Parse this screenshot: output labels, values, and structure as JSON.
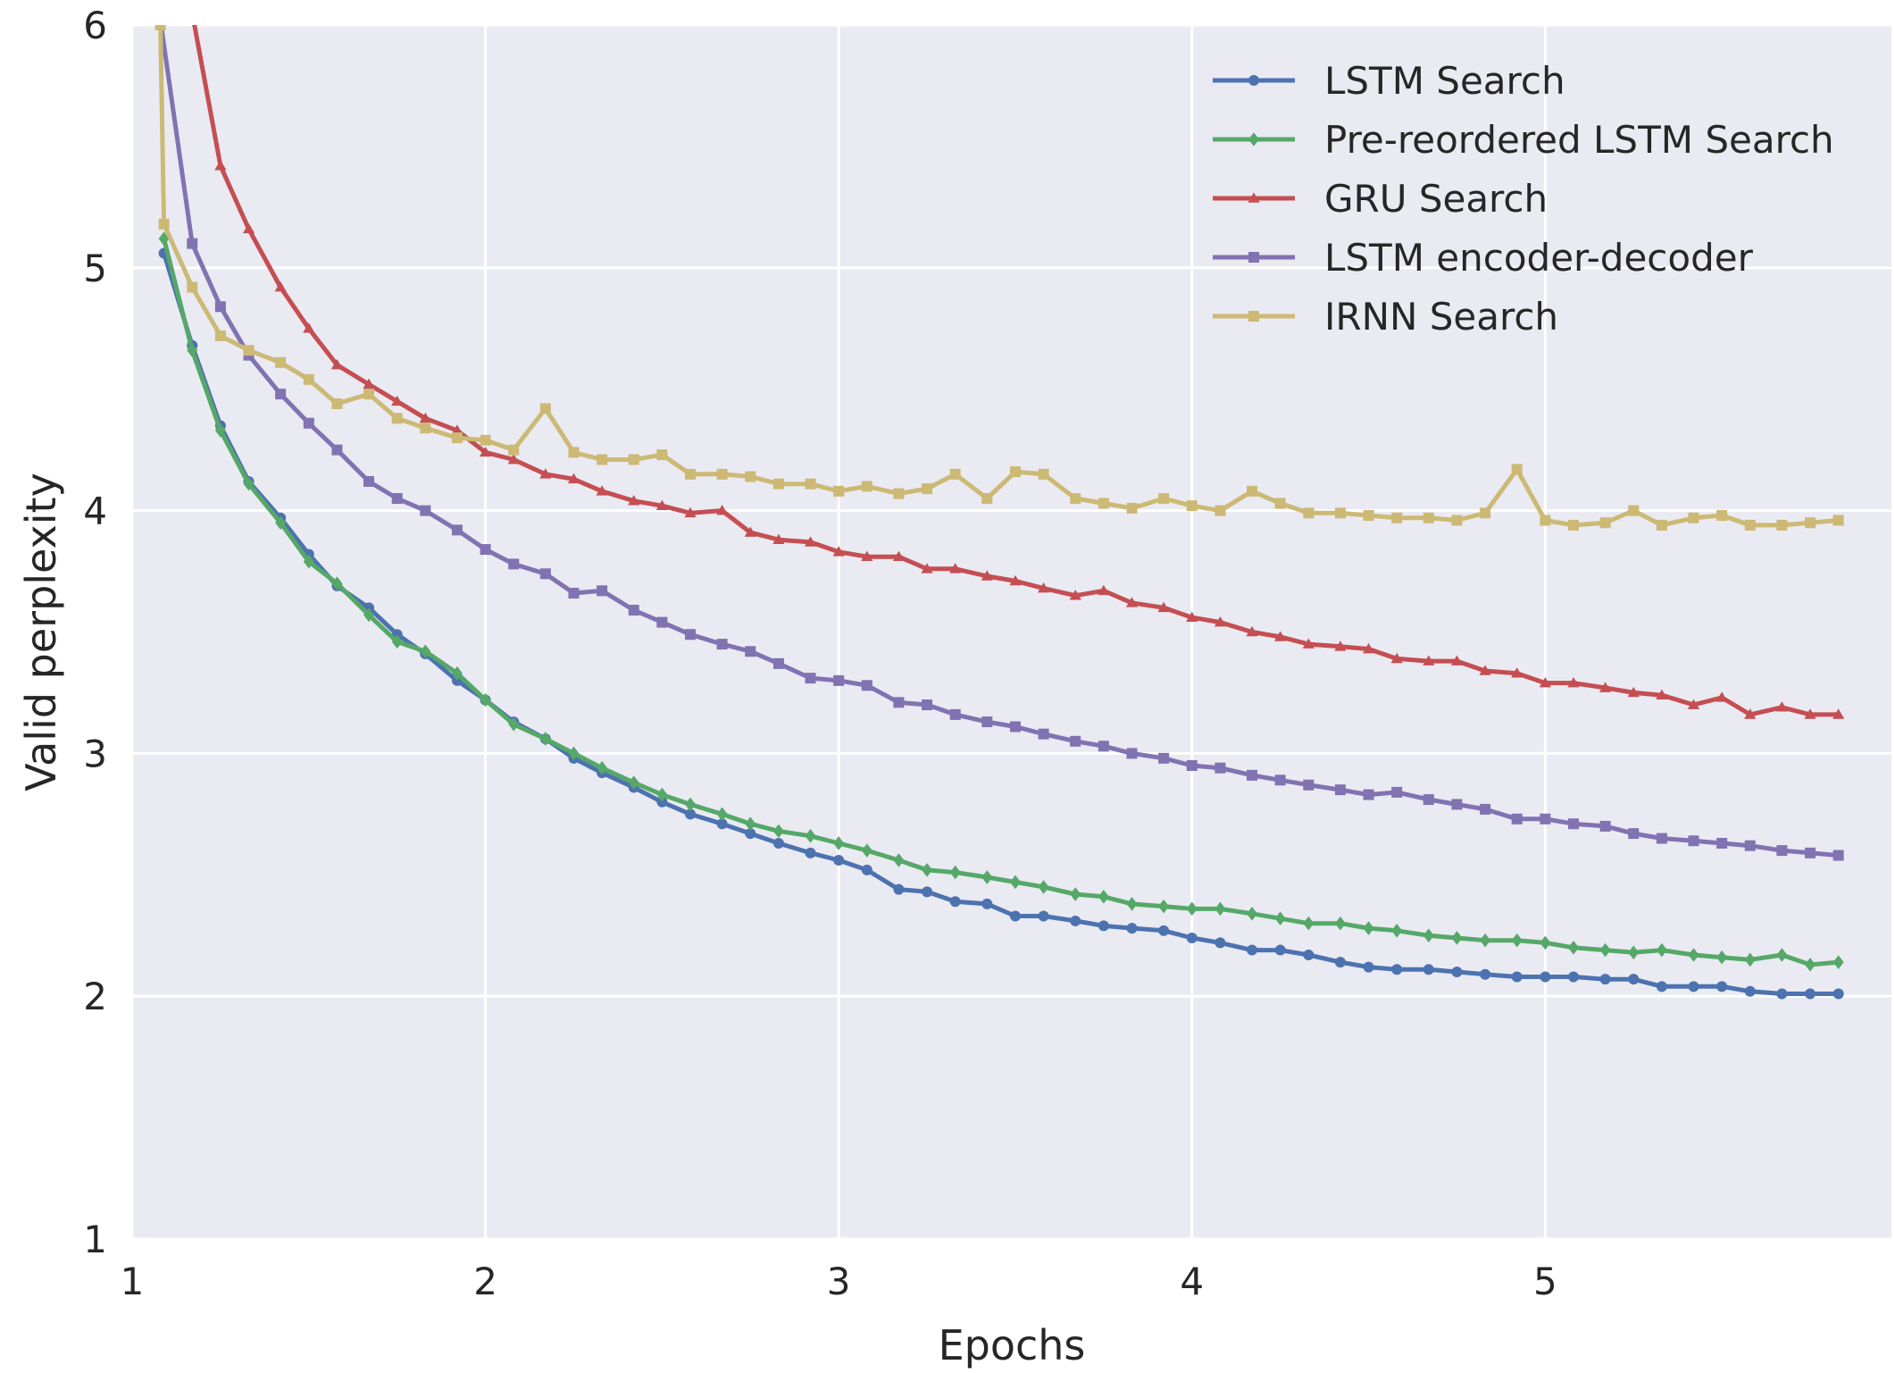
{
  "chart_data": {
    "type": "line",
    "title": "",
    "xlabel": "Epochs",
    "ylabel": "Valid perplexity",
    "xlim": [
      1,
      5.98
    ],
    "ylim": [
      1,
      6
    ],
    "xticks": [
      1,
      2,
      3,
      4,
      5
    ],
    "yticks": [
      1,
      2,
      3,
      4,
      5,
      6
    ],
    "grid": true,
    "background": "#eaeaf2",
    "grid_color": "#ffffff",
    "legend_position": "top-right",
    "series": [
      {
        "name": "LSTM Search",
        "color": "#4c72b0",
        "marker": "circle",
        "x": [
          1.09,
          1.17,
          1.25,
          1.33,
          1.42,
          1.5,
          1.58,
          1.67,
          1.75,
          1.83,
          1.92,
          2.0,
          2.08,
          2.17,
          2.25,
          2.33,
          2.42,
          2.5,
          2.58,
          2.67,
          2.75,
          2.83,
          2.92,
          3.0,
          3.08,
          3.17,
          3.25,
          3.33,
          3.42,
          3.5,
          3.58,
          3.67,
          3.75,
          3.83,
          3.92,
          4.0,
          4.08,
          4.17,
          4.25,
          4.33,
          4.42,
          4.5,
          4.58,
          4.67,
          4.75,
          4.83,
          4.92,
          5.0,
          5.08,
          5.17,
          5.25,
          5.33,
          5.42,
          5.5,
          5.58,
          5.67,
          5.75,
          5.83
        ],
        "y": [
          5.06,
          4.68,
          4.35,
          4.12,
          3.97,
          3.82,
          3.69,
          3.6,
          3.49,
          3.41,
          3.3,
          3.22,
          3.13,
          3.06,
          2.98,
          2.92,
          2.86,
          2.8,
          2.75,
          2.71,
          2.67,
          2.63,
          2.59,
          2.56,
          2.52,
          2.44,
          2.43,
          2.39,
          2.38,
          2.33,
          2.33,
          2.31,
          2.29,
          2.28,
          2.27,
          2.24,
          2.22,
          2.19,
          2.19,
          2.17,
          2.14,
          2.12,
          2.11,
          2.11,
          2.1,
          2.09,
          2.08,
          2.08,
          2.08,
          2.07,
          2.07,
          2.04,
          2.04,
          2.04,
          2.02,
          2.01,
          2.01,
          2.01
        ]
      },
      {
        "name": "Pre-reordered LSTM Search",
        "color": "#55a868",
        "marker": "diamond",
        "x": [
          1.09,
          1.17,
          1.25,
          1.33,
          1.42,
          1.5,
          1.58,
          1.67,
          1.75,
          1.83,
          1.92,
          2.0,
          2.08,
          2.17,
          2.25,
          2.33,
          2.42,
          2.5,
          2.58,
          2.67,
          2.75,
          2.83,
          2.92,
          3.0,
          3.08,
          3.17,
          3.25,
          3.33,
          3.42,
          3.5,
          3.58,
          3.67,
          3.75,
          3.83,
          3.92,
          4.0,
          4.08,
          4.17,
          4.25,
          4.33,
          4.42,
          4.5,
          4.58,
          4.67,
          4.75,
          4.83,
          4.92,
          5.0,
          5.08,
          5.17,
          5.25,
          5.33,
          5.42,
          5.5,
          5.58,
          5.67,
          5.75,
          5.83
        ],
        "y": [
          5.12,
          4.66,
          4.33,
          4.11,
          3.95,
          3.79,
          3.7,
          3.57,
          3.46,
          3.42,
          3.33,
          3.22,
          3.12,
          3.06,
          3.0,
          2.94,
          2.88,
          2.83,
          2.79,
          2.75,
          2.71,
          2.68,
          2.66,
          2.63,
          2.6,
          2.56,
          2.52,
          2.51,
          2.49,
          2.47,
          2.45,
          2.42,
          2.41,
          2.38,
          2.37,
          2.36,
          2.36,
          2.34,
          2.32,
          2.3,
          2.3,
          2.28,
          2.27,
          2.25,
          2.24,
          2.23,
          2.23,
          2.22,
          2.2,
          2.19,
          2.18,
          2.19,
          2.17,
          2.16,
          2.15,
          2.17,
          2.13,
          2.14
        ]
      },
      {
        "name": "GRU Search",
        "color": "#c44e52",
        "marker": "triangle",
        "x": [
          1.17,
          1.25,
          1.33,
          1.42,
          1.5,
          1.58,
          1.67,
          1.75,
          1.83,
          1.92,
          2.0,
          2.08,
          2.17,
          2.25,
          2.33,
          2.42,
          2.5,
          2.58,
          2.67,
          2.75,
          2.83,
          2.92,
          3.0,
          3.08,
          3.17,
          3.25,
          3.33,
          3.42,
          3.5,
          3.58,
          3.67,
          3.75,
          3.83,
          3.92,
          4.0,
          4.08,
          4.17,
          4.25,
          4.33,
          4.42,
          4.5,
          4.58,
          4.67,
          4.75,
          4.83,
          4.92,
          5.0,
          5.08,
          5.17,
          5.25,
          5.33,
          5.42,
          5.5,
          5.58,
          5.67,
          5.75,
          5.83
        ],
        "y": [
          6.05,
          5.42,
          5.16,
          4.92,
          4.75,
          4.6,
          4.52,
          4.45,
          4.38,
          4.33,
          4.24,
          4.21,
          4.15,
          4.13,
          4.08,
          4.04,
          4.02,
          3.99,
          4.0,
          3.91,
          3.88,
          3.87,
          3.83,
          3.81,
          3.81,
          3.76,
          3.76,
          3.73,
          3.71,
          3.68,
          3.65,
          3.67,
          3.62,
          3.6,
          3.56,
          3.54,
          3.5,
          3.48,
          3.45,
          3.44,
          3.43,
          3.39,
          3.38,
          3.38,
          3.34,
          3.33,
          3.29,
          3.29,
          3.27,
          3.25,
          3.24,
          3.2,
          3.23,
          3.16,
          3.19,
          3.16,
          3.16
        ]
      },
      {
        "name": "LSTM encoder-decoder",
        "color": "#8172b2",
        "marker": "square",
        "x": [
          1.08,
          1.17,
          1.25,
          1.33,
          1.42,
          1.5,
          1.58,
          1.67,
          1.75,
          1.83,
          1.92,
          2.0,
          2.08,
          2.17,
          2.25,
          2.33,
          2.42,
          2.5,
          2.58,
          2.67,
          2.75,
          2.83,
          2.92,
          3.0,
          3.08,
          3.17,
          3.25,
          3.33,
          3.42,
          3.5,
          3.58,
          3.67,
          3.75,
          3.83,
          3.92,
          4.0,
          4.08,
          4.17,
          4.25,
          4.33,
          4.42,
          4.5,
          4.58,
          4.67,
          4.75,
          4.83,
          4.92,
          5.0,
          5.08,
          5.17,
          5.25,
          5.33,
          5.42,
          5.5,
          5.58,
          5.67,
          5.75,
          5.83
        ],
        "y": [
          6.02,
          5.1,
          4.84,
          4.64,
          4.48,
          4.36,
          4.25,
          4.12,
          4.05,
          4.0,
          3.92,
          3.84,
          3.78,
          3.74,
          3.66,
          3.67,
          3.59,
          3.54,
          3.49,
          3.45,
          3.42,
          3.37,
          3.31,
          3.3,
          3.28,
          3.21,
          3.2,
          3.16,
          3.13,
          3.11,
          3.08,
          3.05,
          3.03,
          3.0,
          2.98,
          2.95,
          2.94,
          2.91,
          2.89,
          2.87,
          2.85,
          2.83,
          2.84,
          2.81,
          2.79,
          2.77,
          2.73,
          2.73,
          2.71,
          2.7,
          2.67,
          2.65,
          2.64,
          2.63,
          2.62,
          2.6,
          2.59,
          2.58
        ]
      },
      {
        "name": "IRNN Search",
        "color": "#ccb974",
        "marker": "square",
        "x": [
          1.08,
          1.09,
          1.17,
          1.25,
          1.33,
          1.42,
          1.5,
          1.58,
          1.67,
          1.75,
          1.83,
          1.92,
          2.0,
          2.08,
          2.17,
          2.25,
          2.33,
          2.42,
          2.5,
          2.58,
          2.67,
          2.75,
          2.83,
          2.92,
          3.0,
          3.08,
          3.17,
          3.25,
          3.33,
          3.42,
          3.5,
          3.58,
          3.67,
          3.75,
          3.83,
          3.92,
          4.0,
          4.08,
          4.17,
          4.25,
          4.33,
          4.42,
          4.5,
          4.58,
          4.67,
          4.75,
          4.83,
          4.92,
          5.0,
          5.08,
          5.17,
          5.25,
          5.33,
          5.42,
          5.5,
          5.58,
          5.67,
          5.75,
          5.83
        ],
        "y": [
          6.0,
          5.18,
          4.92,
          4.72,
          4.66,
          4.61,
          4.54,
          4.44,
          4.48,
          4.38,
          4.34,
          4.3,
          4.29,
          4.25,
          4.42,
          4.24,
          4.21,
          4.21,
          4.23,
          4.15,
          4.15,
          4.14,
          4.11,
          4.11,
          4.08,
          4.1,
          4.07,
          4.09,
          4.15,
          4.05,
          4.16,
          4.15,
          4.05,
          4.03,
          4.01,
          4.05,
          4.02,
          4.0,
          4.08,
          4.03,
          3.99,
          3.99,
          3.98,
          3.97,
          3.97,
          3.96,
          3.99,
          4.17,
          3.96,
          3.94,
          3.95,
          4.0,
          3.94,
          3.97,
          3.98,
          3.94,
          3.94,
          3.95,
          3.96
        ]
      }
    ]
  }
}
